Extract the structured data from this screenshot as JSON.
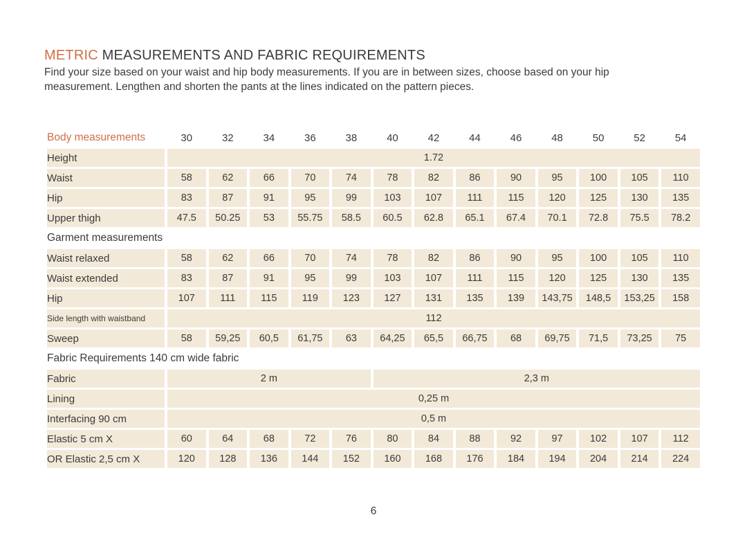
{
  "header": {
    "title_accent": "METRIC",
    "title_rest": " MEASUREMENTS AND FABRIC REQUIREMENTS",
    "intro_line1": "Find your size based on your waist and hip body measurements. If you are in between sizes, choose based on your hip",
    "intro_line2": "measurement. Lengthen and shorten the pants at the lines indicated on the pattern pieces."
  },
  "colors": {
    "accent_orange": "#d26e48",
    "cell_beige": "#f2e9d8",
    "text_dark": "#3b3b3b"
  },
  "table": {
    "header": {
      "label": "Body measurements",
      "sizes": [
        "30",
        "32",
        "34",
        "36",
        "38",
        "40",
        "42",
        "44",
        "46",
        "48",
        "50",
        "52",
        "54"
      ]
    },
    "rows": [
      {
        "type": "span",
        "label": "Height",
        "value": "1.72"
      },
      {
        "type": "data",
        "label": "Waist",
        "values": [
          "58",
          "62",
          "66",
          "70",
          "74",
          "78",
          "82",
          "86",
          "90",
          "95",
          "100",
          "105",
          "110"
        ]
      },
      {
        "type": "data",
        "label": "Hip",
        "values": [
          "83",
          "87",
          "91",
          "95",
          "99",
          "103",
          "107",
          "111",
          "115",
          "120",
          "125",
          "130",
          "135"
        ]
      },
      {
        "type": "data",
        "label": "Upper thigh",
        "values": [
          "47.5",
          "50.25",
          "53",
          "55.75",
          "58.5",
          "60.5",
          "62.8",
          "65.1",
          "67.4",
          "70.1",
          "72.8",
          "75.5",
          "78.2"
        ]
      },
      {
        "type": "section",
        "label": "Garment measurements"
      },
      {
        "type": "data",
        "label": "Waist relaxed",
        "values": [
          "58",
          "62",
          "66",
          "70",
          "74",
          "78",
          "82",
          "86",
          "90",
          "95",
          "100",
          "105",
          "110"
        ]
      },
      {
        "type": "data",
        "label": "Waist extended",
        "values": [
          "83",
          "87",
          "91",
          "95",
          "99",
          "103",
          "107",
          "111",
          "115",
          "120",
          "125",
          "130",
          "135"
        ]
      },
      {
        "type": "data",
        "label": "Hip",
        "values": [
          "107",
          "111",
          "115",
          "119",
          "123",
          "127",
          "131",
          "135",
          "139",
          "143,75",
          "148,5",
          "153,25",
          "158"
        ]
      },
      {
        "type": "span",
        "label": "Side length with waistband",
        "value": "112",
        "small_label": true
      },
      {
        "type": "data",
        "label": "Sweep",
        "values": [
          "58",
          "59,25",
          "60,5",
          "61,75",
          "63",
          "64,25",
          "65,5",
          "66,75",
          "68",
          "69,75",
          "71,5",
          "73,25",
          "75"
        ]
      },
      {
        "type": "section",
        "label": "Fabric Requirements 140 cm wide fabric"
      },
      {
        "type": "split",
        "label": "Fabric",
        "cells": [
          {
            "value": "2 m",
            "span": 5
          },
          {
            "value": "2,3 m",
            "span": 8
          }
        ]
      },
      {
        "type": "span",
        "label": "Lining",
        "value": "0,25 m"
      },
      {
        "type": "span",
        "label": "Interfacing 90 cm",
        "value": "0,5 m"
      },
      {
        "type": "data",
        "label": "Elastic 5 cm X",
        "values": [
          "60",
          "64",
          "68",
          "72",
          "76",
          "80",
          "84",
          "88",
          "92",
          "97",
          "102",
          "107",
          "112"
        ]
      },
      {
        "type": "data",
        "label": "OR Elastic 2,5 cm X",
        "values": [
          "120",
          "128",
          "136",
          "144",
          "152",
          "160",
          "168",
          "176",
          "184",
          "194",
          "204",
          "214",
          "224"
        ]
      }
    ]
  },
  "footer": {
    "page_number": "6"
  }
}
